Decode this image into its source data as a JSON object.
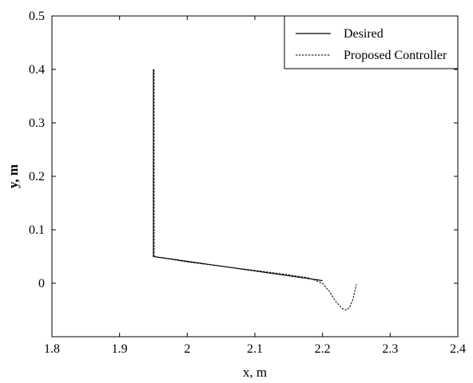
{
  "chart_data": {
    "type": "line",
    "title": "",
    "xlabel": "x, m",
    "ylabel": "y, m",
    "xlim": [
      1.8,
      2.4
    ],
    "ylim": [
      -0.1,
      0.5
    ],
    "xticks": [
      "1.8",
      "1.9",
      "2",
      "2.1",
      "2.2",
      "2.3",
      "2.4"
    ],
    "yticks": [
      "0",
      "0.1",
      "0.2",
      "0.3",
      "0.4",
      "0.5"
    ],
    "grid": false,
    "legend_position": "top-right",
    "series": [
      {
        "name": "Desired",
        "style": "solid",
        "color": "#000000",
        "x": [
          1.95,
          1.95,
          2.2
        ],
        "y": [
          0.4,
          0.05,
          0.005
        ]
      },
      {
        "name": "Proposed Controller",
        "style": "dashed",
        "color": "#000000",
        "x": [
          1.951,
          1.951,
          2.0,
          2.05,
          2.1,
          2.15,
          2.18,
          2.2,
          2.21,
          2.22,
          2.23,
          2.235,
          2.24,
          2.245,
          2.25
        ],
        "y": [
          0.4,
          0.05,
          0.04,
          0.032,
          0.024,
          0.016,
          0.01,
          0.0,
          -0.015,
          -0.035,
          -0.048,
          -0.05,
          -0.045,
          -0.03,
          -0.002
        ]
      }
    ]
  }
}
